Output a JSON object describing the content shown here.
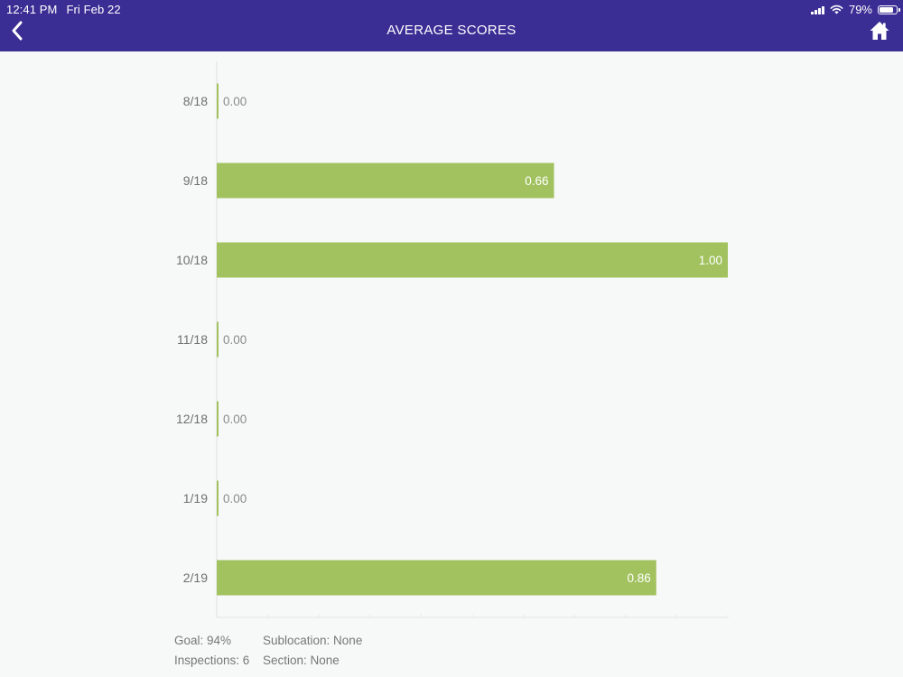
{
  "status_bar": {
    "time": "12:41 PM",
    "date": "Fri Feb 22",
    "battery": "79%",
    "battery_level": 0.79
  },
  "header": {
    "title": "AVERAGE SCORES",
    "back_icon": "chevron-left-icon",
    "home_icon": "home-icon"
  },
  "colors": {
    "header_bg": "#3a2e94",
    "bar": "#a1c25f",
    "background": "#f7f9f8"
  },
  "chart_data": {
    "type": "bar",
    "orientation": "horizontal",
    "categories": [
      "8/18",
      "9/18",
      "10/18",
      "11/18",
      "12/18",
      "1/19",
      "2/19"
    ],
    "values": [
      0.0,
      0.66,
      1.0,
      0.0,
      0.0,
      0.0,
      0.86
    ],
    "value_labels": [
      "0.00",
      "0.66",
      "1.00",
      "0.00",
      "0.00",
      "0.00",
      "0.86"
    ],
    "title": "",
    "xlabel": "",
    "ylabel": "",
    "xlim": [
      0,
      1
    ],
    "grid": true,
    "legend": "none"
  },
  "footer": {
    "goal": "Goal: 94%",
    "inspections": "Inspections: 6",
    "sublocation": "Sublocation: None",
    "section": "Section: None"
  }
}
